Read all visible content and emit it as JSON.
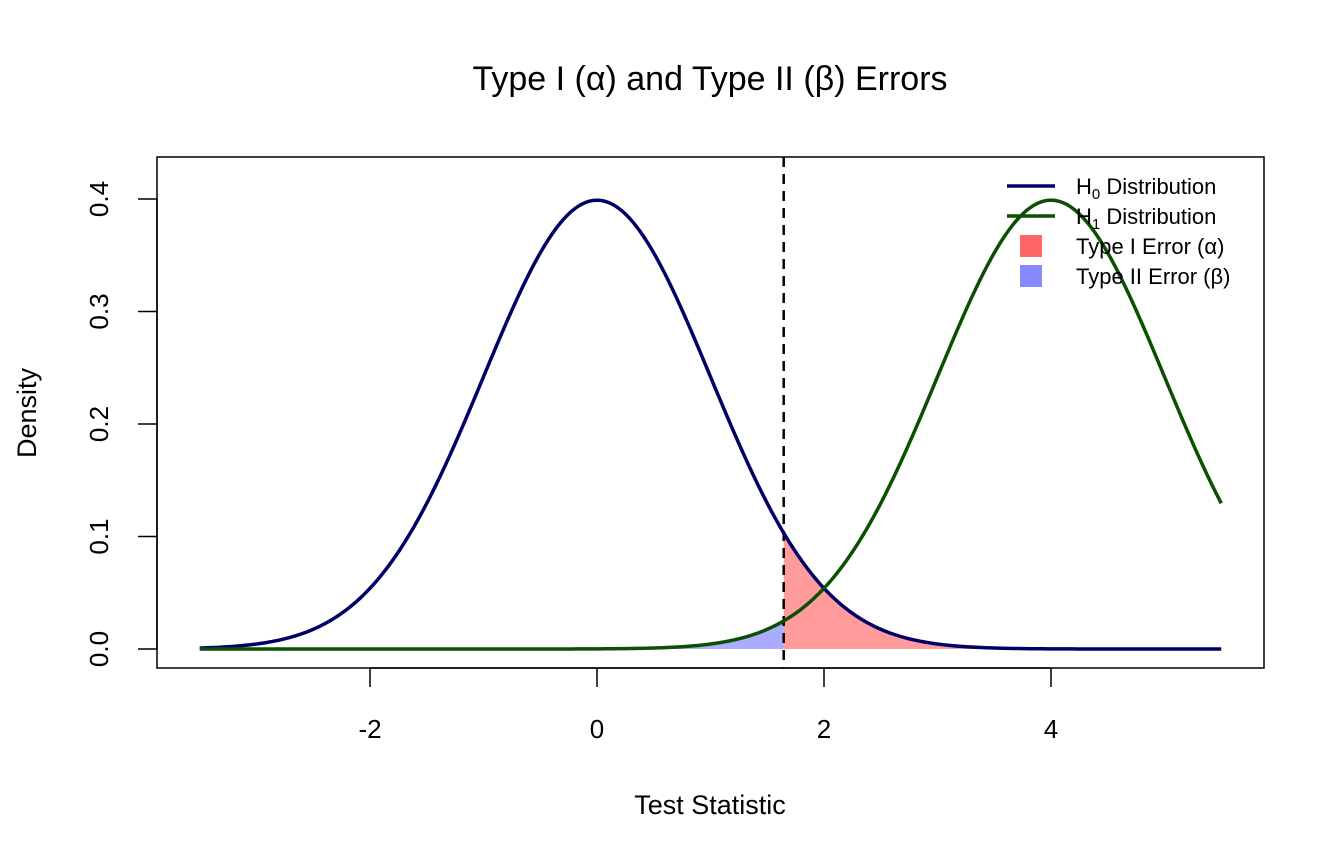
{
  "chart_data": {
    "type": "line",
    "title": "Type I (α) and Type II (β) Errors",
    "xlabel": "Test Statistic",
    "ylabel": "Density",
    "xlim": [
      -3.5,
      5.5
    ],
    "ylim": [
      0,
      0.4
    ],
    "x_ticks": [
      -2,
      0,
      2,
      4
    ],
    "x_tick_labels": [
      "-2",
      "0",
      "2",
      "4"
    ],
    "y_ticks": [
      0.0,
      0.1,
      0.2,
      0.3,
      0.4
    ],
    "y_tick_labels": [
      "0.0",
      "0.1",
      "0.2",
      "0.3",
      "0.4"
    ],
    "critical_value": 1.645,
    "grid": false,
    "legend_position": "top-right",
    "series": [
      {
        "name": "H0 Distribution",
        "distribution": "normal",
        "mean": 0,
        "sd": 1,
        "color": "#000066"
      },
      {
        "name": "H1 Distribution",
        "distribution": "normal",
        "mean": 4,
        "sd": 1,
        "color": "#0b4f00"
      }
    ],
    "shaded_regions": [
      {
        "name": "Type I Error (α)",
        "under": "H0 Distribution",
        "from": 1.645,
        "to": 5.5,
        "color": "#ff6666"
      },
      {
        "name": "Type II Error (β)",
        "under": "H1 Distribution",
        "from": -3.5,
        "to": 1.645,
        "color": "#8888ff"
      }
    ],
    "legend": [
      {
        "main": "H",
        "sub": "0",
        "rest": " Distribution",
        "kind": "line",
        "color": "#000066"
      },
      {
        "main": "H",
        "sub": "1",
        "rest": " Distribution",
        "kind": "line",
        "color": "#0b4f00"
      },
      {
        "main": "Type I Error (α)",
        "sub": "",
        "rest": "",
        "kind": "box",
        "color": "#ff6666"
      },
      {
        "main": "Type II Error (β)",
        "sub": "",
        "rest": "",
        "kind": "box",
        "color": "#8888ff"
      }
    ]
  }
}
